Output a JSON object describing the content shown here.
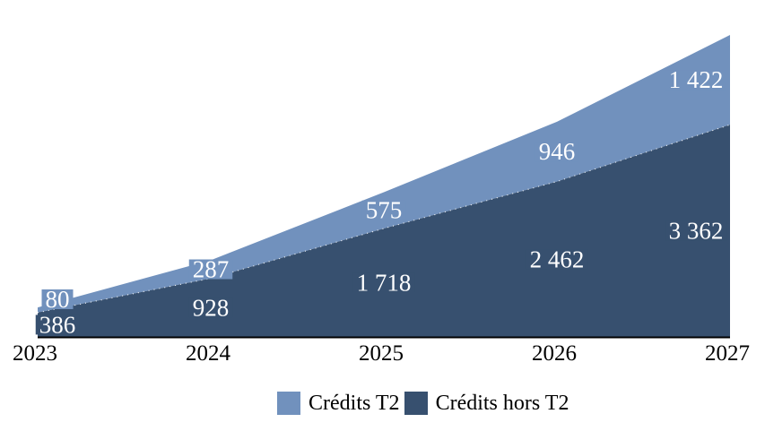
{
  "chart_data": {
    "type": "area",
    "stacked": true,
    "title": "",
    "xlabel": "",
    "ylabel": "",
    "categories": [
      "2023",
      "2024",
      "2025",
      "2026",
      "2027"
    ],
    "series": [
      {
        "name": "Crédits T2",
        "color": "#7191BD",
        "values": [
          80,
          287,
          575,
          946,
          1422
        ],
        "labels": [
          "80",
          "287",
          "575",
          "946",
          "1 422"
        ]
      },
      {
        "name": "Crédits hors T2",
        "color": "#37506F",
        "values": [
          386,
          928,
          1718,
          2462,
          3362
        ],
        "labels": [
          "386",
          "928",
          "1 718",
          "2 462",
          "3 362"
        ]
      }
    ],
    "stack_totals": [
      466,
      1215,
      2293,
      3408,
      4784
    ],
    "ylim": [
      0,
      4784
    ],
    "grid": false,
    "legend_position": "bottom",
    "data_labels": {
      "visible": true,
      "color": "#FFFFFF",
      "thousands_separator": " "
    }
  },
  "colors": {
    "background": "#FFFFFF",
    "axis_line": "#000000",
    "tick_text": "#000000",
    "legend_text": "#000000",
    "series_boundary_dots": "#FFFFFF"
  }
}
